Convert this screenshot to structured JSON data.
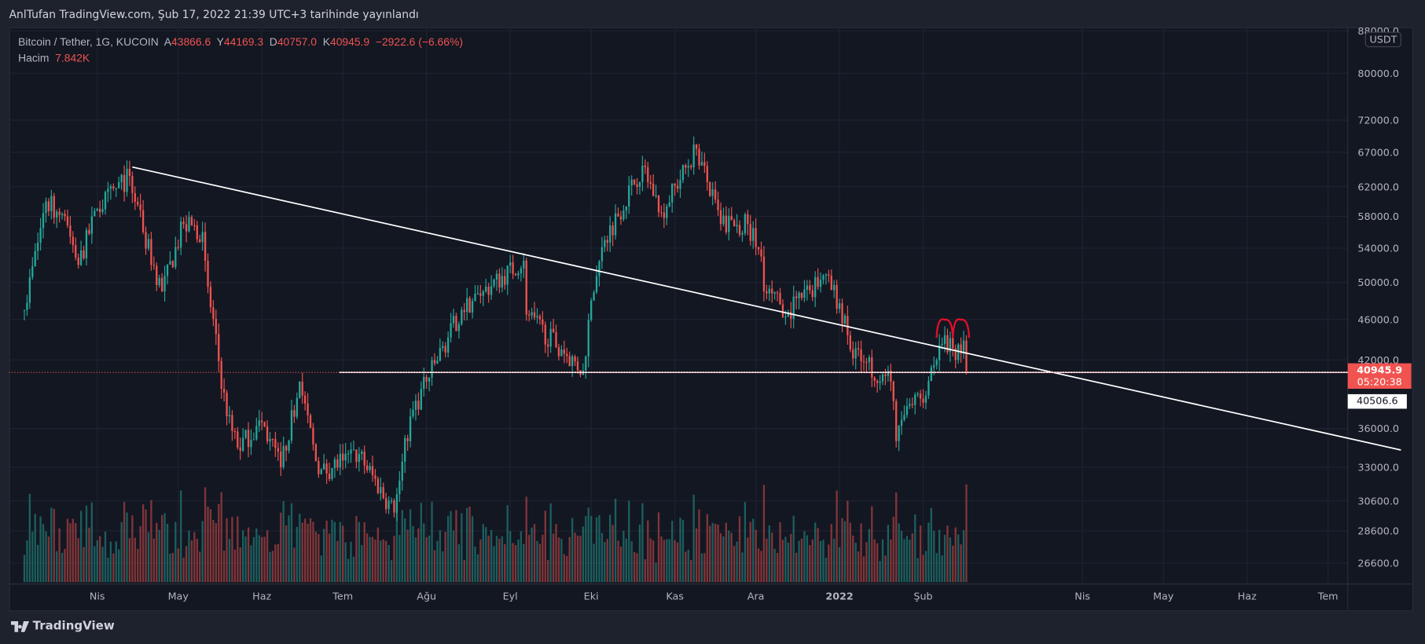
{
  "header": {
    "published": "AnlTufan TradingView.com, Şub 17, 2022 21:39 UTC+3 tarihinde yayınlandı"
  },
  "legend": {
    "symbol": "Bitcoin / Tether, 1G, KUCOIN",
    "o_label": "A",
    "o": "43866.6",
    "h_label": "Y",
    "h": "44169.3",
    "l_label": "D",
    "l": "40757.0",
    "c_label": "K",
    "c": "40945.9",
    "change": "−2922.6 (−6.66%)",
    "volume_label": "Hacim",
    "volume": "7.842K"
  },
  "price_axis": {
    "currency": "USDT",
    "last_price": "40945.9",
    "countdown": "05:20:38",
    "line_price": "40506.6"
  },
  "footer": {
    "brand": "TradingView"
  },
  "colors": {
    "up": "#26a69a",
    "down": "#ef5350",
    "bg": "#131722"
  },
  "chart_data": {
    "type": "candlestick",
    "title": "Bitcoin / Tether, 1G, KUCOIN",
    "scale": "log",
    "y_ticks": [
      "88000.0",
      "80000.0",
      "72000.0",
      "67000.0",
      "62000.0",
      "58000.0",
      "54000.0",
      "50000.0",
      "46000.0",
      "42000.0",
      "36000.0",
      "33000.0",
      "30600.0",
      "28600.0",
      "26600.0"
    ],
    "x_ticks": [
      "Nis",
      "May",
      "Haz",
      "Tem",
      "Ağu",
      "Eyl",
      "Eki",
      "Kas",
      "Ara",
      "2022",
      "Şub",
      "Nis",
      "May",
      "Haz",
      "Tem"
    ],
    "close_path": [
      [
        "2021-03-05",
        47000
      ],
      [
        "2021-03-13",
        60000
      ],
      [
        "2021-03-20",
        58000
      ],
      [
        "2021-03-25",
        52000
      ],
      [
        "2021-04-01",
        59000
      ],
      [
        "2021-04-13",
        63500
      ],
      [
        "2021-04-18",
        56000
      ],
      [
        "2021-04-25",
        49000
      ],
      [
        "2021-05-03",
        57000
      ],
      [
        "2021-05-10",
        56000
      ],
      [
        "2021-05-12",
        49500
      ],
      [
        "2021-05-19",
        37000
      ],
      [
        "2021-05-23",
        34500
      ],
      [
        "2021-06-01",
        36500
      ],
      [
        "2021-06-08",
        33000
      ],
      [
        "2021-06-15",
        40000
      ],
      [
        "2021-06-22",
        32500
      ],
      [
        "2021-07-01",
        33500
      ],
      [
        "2021-07-07",
        34000
      ],
      [
        "2021-07-20",
        29800
      ],
      [
        "2021-07-26",
        37000
      ],
      [
        "2021-08-01",
        40000
      ],
      [
        "2021-08-14",
        47000
      ],
      [
        "2021-08-22",
        49000
      ],
      [
        "2021-09-06",
        52500
      ],
      [
        "2021-09-07",
        46500
      ],
      [
        "2021-09-20",
        43000
      ],
      [
        "2021-09-28",
        41000
      ],
      [
        "2021-10-01",
        48000
      ],
      [
        "2021-10-06",
        55000
      ],
      [
        "2021-10-20",
        65000
      ],
      [
        "2021-10-27",
        58500
      ],
      [
        "2021-11-09",
        67500
      ],
      [
        "2021-11-18",
        57000
      ],
      [
        "2021-11-28",
        57000
      ],
      [
        "2021-12-03",
        53000
      ],
      [
        "2021-12-04",
        49000
      ],
      [
        "2021-12-13",
        46800
      ],
      [
        "2021-12-26",
        50800
      ],
      [
        "2022-01-01",
        47700
      ],
      [
        "2022-01-05",
        43000
      ],
      [
        "2022-01-10",
        41800
      ],
      [
        "2022-01-20",
        40000
      ],
      [
        "2022-01-22",
        35000
      ],
      [
        "2022-01-24",
        36700
      ],
      [
        "2022-01-31",
        38500
      ],
      [
        "2022-02-05",
        41500
      ],
      [
        "2022-02-09",
        44400
      ],
      [
        "2022-02-13",
        42000
      ],
      [
        "2022-02-16",
        43866.6
      ],
      [
        "2022-02-17",
        40945.9
      ]
    ],
    "drawings": {
      "trendline": [
        [
          "2021-04-14",
          64800
        ],
        [
          "2022-07-28",
          34300
        ]
      ],
      "horizontal_level": 40506.6,
      "double_top_marks": [
        "2022-02-09",
        "2022-02-15"
      ]
    }
  }
}
